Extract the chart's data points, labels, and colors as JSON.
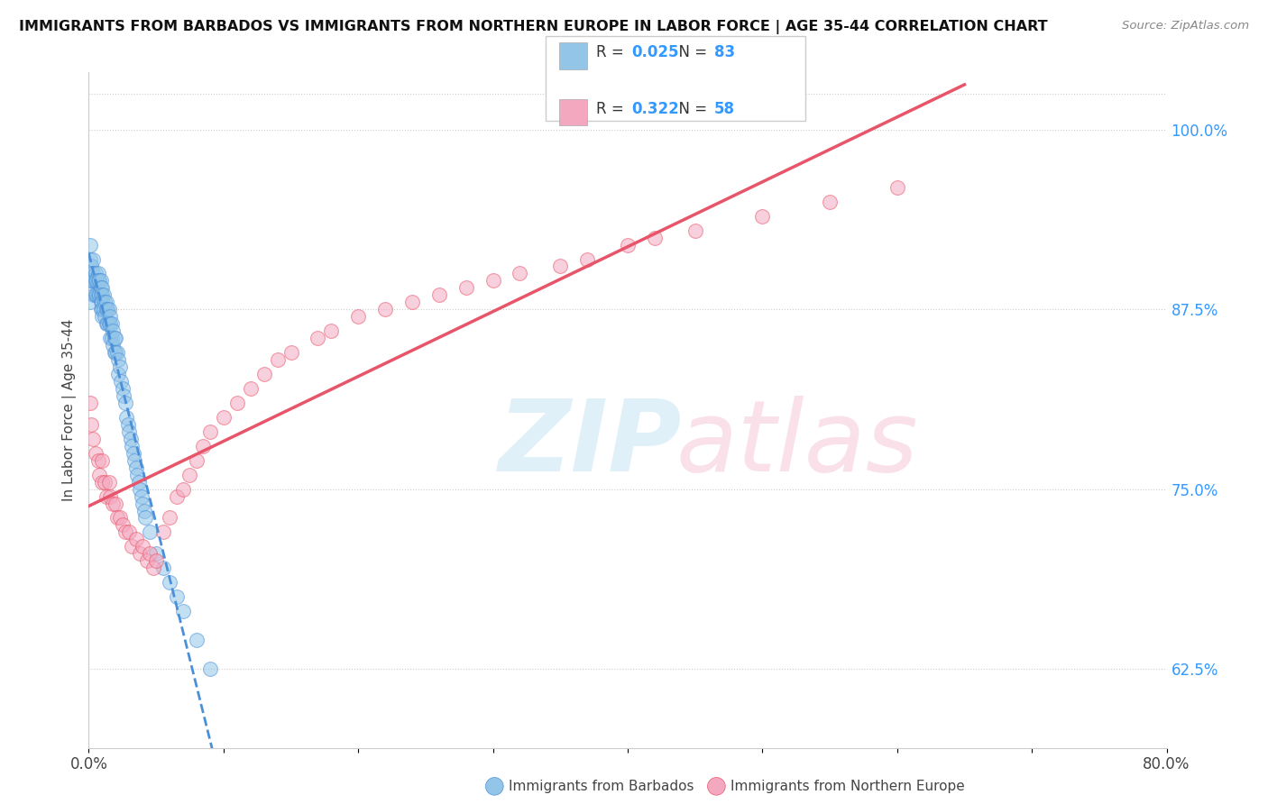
{
  "title": "IMMIGRANTS FROM BARBADOS VS IMMIGRANTS FROM NORTHERN EUROPE IN LABOR FORCE | AGE 35-44 CORRELATION CHART",
  "source": "Source: ZipAtlas.com",
  "xlabel_bottom": "Immigrants from Barbados",
  "xlabel_bottom2": "Immigrants from Northern Europe",
  "ylabel": "In Labor Force | Age 35-44",
  "right_ytick_labels": [
    "62.5%",
    "75.0%",
    "87.5%",
    "100.0%"
  ],
  "right_ytick_values": [
    0.625,
    0.75,
    0.875,
    1.0
  ],
  "xlim": [
    0.0,
    0.8
  ],
  "ylim": [
    0.57,
    1.04
  ],
  "barbados_R": 0.025,
  "barbados_N": 83,
  "northern_europe_R": 0.322,
  "northern_europe_N": 58,
  "blue_color": "#92c5e8",
  "pink_color": "#f4a8c0",
  "blue_line_color": "#4a90d9",
  "pink_line_color": "#e8556a",
  "barbados_x": [
    0.001,
    0.001,
    0.001,
    0.001,
    0.002,
    0.002,
    0.003,
    0.003,
    0.004,
    0.004,
    0.005,
    0.005,
    0.005,
    0.006,
    0.006,
    0.007,
    0.007,
    0.007,
    0.008,
    0.008,
    0.009,
    0.009,
    0.009,
    0.009,
    0.009,
    0.01,
    0.01,
    0.01,
    0.01,
    0.01,
    0.011,
    0.011,
    0.012,
    0.012,
    0.013,
    0.013,
    0.013,
    0.014,
    0.014,
    0.015,
    0.015,
    0.016,
    0.016,
    0.016,
    0.017,
    0.017,
    0.018,
    0.018,
    0.019,
    0.019,
    0.02,
    0.02,
    0.021,
    0.022,
    0.022,
    0.023,
    0.024,
    0.025,
    0.026,
    0.027,
    0.028,
    0.029,
    0.03,
    0.031,
    0.032,
    0.033,
    0.034,
    0.035,
    0.036,
    0.037,
    0.038,
    0.039,
    0.04,
    0.041,
    0.042,
    0.045,
    0.05,
    0.055,
    0.06,
    0.065,
    0.07,
    0.08,
    0.09
  ],
  "barbados_y": [
    0.92,
    0.91,
    0.895,
    0.88,
    0.905,
    0.895,
    0.91,
    0.9,
    0.895,
    0.885,
    0.9,
    0.895,
    0.885,
    0.895,
    0.885,
    0.9,
    0.895,
    0.885,
    0.895,
    0.885,
    0.895,
    0.89,
    0.885,
    0.88,
    0.875,
    0.89,
    0.885,
    0.88,
    0.875,
    0.87,
    0.885,
    0.875,
    0.88,
    0.87,
    0.88,
    0.875,
    0.865,
    0.875,
    0.865,
    0.875,
    0.865,
    0.87,
    0.865,
    0.855,
    0.865,
    0.855,
    0.86,
    0.85,
    0.855,
    0.845,
    0.855,
    0.845,
    0.845,
    0.84,
    0.83,
    0.835,
    0.825,
    0.82,
    0.815,
    0.81,
    0.8,
    0.795,
    0.79,
    0.785,
    0.78,
    0.775,
    0.77,
    0.765,
    0.76,
    0.755,
    0.75,
    0.745,
    0.74,
    0.735,
    0.73,
    0.72,
    0.705,
    0.695,
    0.685,
    0.675,
    0.665,
    0.645,
    0.625
  ],
  "northern_europe_x": [
    0.001,
    0.002,
    0.003,
    0.005,
    0.007,
    0.008,
    0.01,
    0.01,
    0.012,
    0.013,
    0.015,
    0.016,
    0.018,
    0.02,
    0.021,
    0.023,
    0.025,
    0.027,
    0.03,
    0.032,
    0.035,
    0.038,
    0.04,
    0.043,
    0.045,
    0.048,
    0.05,
    0.055,
    0.06,
    0.065,
    0.07,
    0.075,
    0.08,
    0.085,
    0.09,
    0.1,
    0.11,
    0.12,
    0.13,
    0.14,
    0.15,
    0.17,
    0.18,
    0.2,
    0.22,
    0.24,
    0.26,
    0.28,
    0.3,
    0.32,
    0.35,
    0.37,
    0.4,
    0.42,
    0.45,
    0.5,
    0.55,
    0.6
  ],
  "northern_europe_y": [
    0.81,
    0.795,
    0.785,
    0.775,
    0.77,
    0.76,
    0.77,
    0.755,
    0.755,
    0.745,
    0.755,
    0.745,
    0.74,
    0.74,
    0.73,
    0.73,
    0.725,
    0.72,
    0.72,
    0.71,
    0.715,
    0.705,
    0.71,
    0.7,
    0.705,
    0.695,
    0.7,
    0.72,
    0.73,
    0.745,
    0.75,
    0.76,
    0.77,
    0.78,
    0.79,
    0.8,
    0.81,
    0.82,
    0.83,
    0.84,
    0.845,
    0.855,
    0.86,
    0.87,
    0.875,
    0.88,
    0.885,
    0.89,
    0.895,
    0.9,
    0.905,
    0.91,
    0.92,
    0.925,
    0.93,
    0.94,
    0.95,
    0.96
  ]
}
